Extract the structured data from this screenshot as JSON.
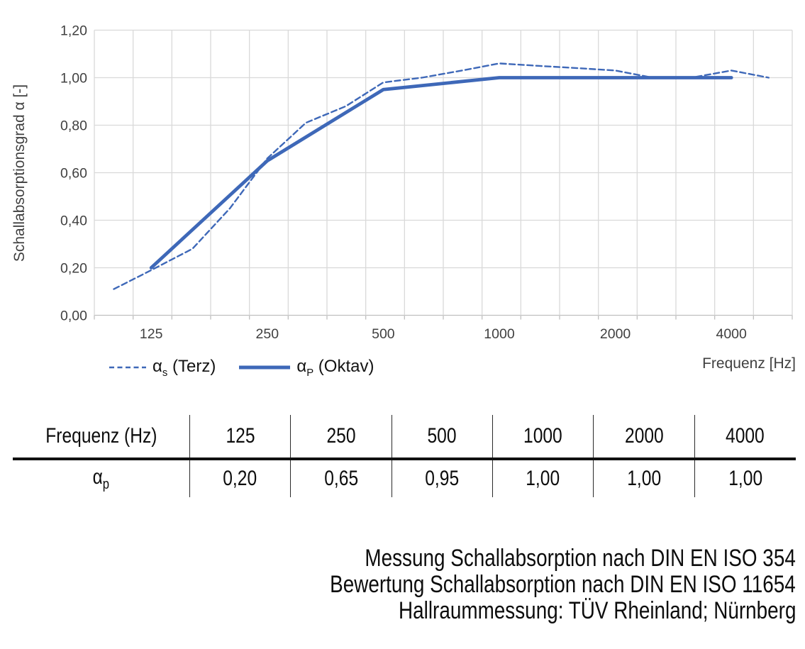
{
  "chart_data": {
    "type": "line",
    "title": "",
    "x_axis_title": "Frequenz [Hz]",
    "y_axis_title": "Schallabsorptionsgrad α [-]",
    "x_scale": "log",
    "xlim": [
      89,
      5754
    ],
    "ylim": [
      0,
      1.2
    ],
    "grid": {
      "on": true,
      "vertical_divisions": 18,
      "color": "#d9d9d9",
      "axis_color": "#bfbfbf"
    },
    "line_color": "#3e68b8",
    "x_ticks": {
      "values": [
        125,
        250,
        500,
        1000,
        2000,
        4000
      ],
      "labels": [
        "125",
        "250",
        "500",
        "1000",
        "2000",
        "4000"
      ]
    },
    "y_ticks": {
      "values": [
        0,
        0.2,
        0.4,
        0.6,
        0.8,
        1.0,
        1.2
      ],
      "labels": [
        "0,00",
        "0,20",
        "0,40",
        "0,60",
        "0,80",
        "1,00",
        "1,20"
      ]
    },
    "series": [
      {
        "name": "αs (Terz)",
        "style": "dashed",
        "x": [
          100,
          125,
          160,
          200,
          250,
          315,
          400,
          500,
          630,
          800,
          1000,
          1250,
          1600,
          2000,
          2500,
          3150,
          4000,
          5000
        ],
        "y": [
          0.11,
          0.19,
          0.28,
          0.45,
          0.66,
          0.81,
          0.88,
          0.98,
          1.0,
          1.03,
          1.06,
          1.05,
          1.04,
          1.03,
          1.0,
          1.0,
          1.03,
          1.0
        ]
      },
      {
        "name": "αP (Oktav)",
        "style": "solid",
        "x": [
          125,
          250,
          500,
          1000,
          2000,
          4000
        ],
        "y": [
          0.2,
          0.65,
          0.95,
          1.0,
          1.0,
          1.0
        ]
      }
    ],
    "legend_position": "bottom-left"
  },
  "legend": [
    {
      "pre": "α",
      "sub": "s",
      "post": " (Terz)"
    },
    {
      "pre": "α",
      "sub": "P",
      "post": " (Oktav)"
    }
  ],
  "table": {
    "header": [
      "Frequenz (Hz)",
      "125",
      "250",
      "500",
      "1000",
      "2000",
      "4000"
    ],
    "row_label": {
      "pre": "α",
      "sub": "p"
    },
    "values": [
      "0,20",
      "0,65",
      "0,95",
      "1,00",
      "1,00",
      "1,00"
    ]
  },
  "notes": [
    "Messung Schallabsorption nach DIN EN ISO 354",
    "Bewertung Schallabsorption nach DIN EN ISO 11654",
    "Hallraummessung: TÜV Rheinland; Nürnberg"
  ]
}
